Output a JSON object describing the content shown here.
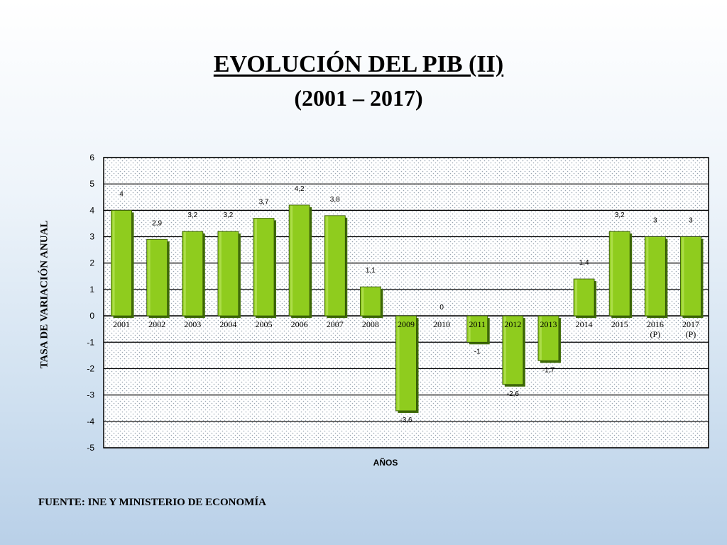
{
  "title": "EVOLUCIÓN DEL PIB (II)",
  "subtitle": "(2001 – 2017)",
  "source": "FUENTE: INE Y MINISTERIO DE ECONOMÍA",
  "colors": {
    "bar_face": "#8fcc1e",
    "bar_shadow": "#3f6b08",
    "plot_background": "#ffffff",
    "dots": "#9aa6b2"
  },
  "chart_data": {
    "type": "bar",
    "title": "EVOLUCIÓN DEL PIB (II)",
    "subtitle": "(2001 – 2017)",
    "xlabel": "AÑOS",
    "ylabel": "TASA DE VARIACIÓN ANUAL",
    "ylim": [
      -5,
      6
    ],
    "yticks": [
      "6",
      "5",
      "4",
      "3",
      "2",
      "1",
      "0",
      "-1",
      "-2",
      "-3",
      "-4",
      "-5"
    ],
    "grid": true,
    "categories": [
      [
        "2001"
      ],
      [
        "2002"
      ],
      [
        "2003"
      ],
      [
        "2004"
      ],
      [
        "2005"
      ],
      [
        "2006"
      ],
      [
        "2007"
      ],
      [
        "2008"
      ],
      [
        "2009"
      ],
      [
        "2010"
      ],
      [
        "2011"
      ],
      [
        "2012"
      ],
      [
        "2013"
      ],
      [
        "2014"
      ],
      [
        "2015"
      ],
      [
        "2016",
        "(P)"
      ],
      [
        "2017",
        "(P)"
      ]
    ],
    "values": [
      4,
      2.9,
      3.2,
      3.2,
      3.7,
      4.2,
      3.8,
      1.1,
      -3.6,
      0,
      -1,
      -2.6,
      -1.7,
      1.4,
      3.2,
      3,
      3
    ],
    "data_labels": [
      "4",
      "2,9",
      "3,2",
      "3,2",
      "3,7",
      "4,2",
      "3,8",
      "1,1",
      "-3,6",
      "0",
      "-1",
      "-2,6",
      "-1,7",
      "1,4",
      "3,2",
      "3",
      "3"
    ]
  }
}
